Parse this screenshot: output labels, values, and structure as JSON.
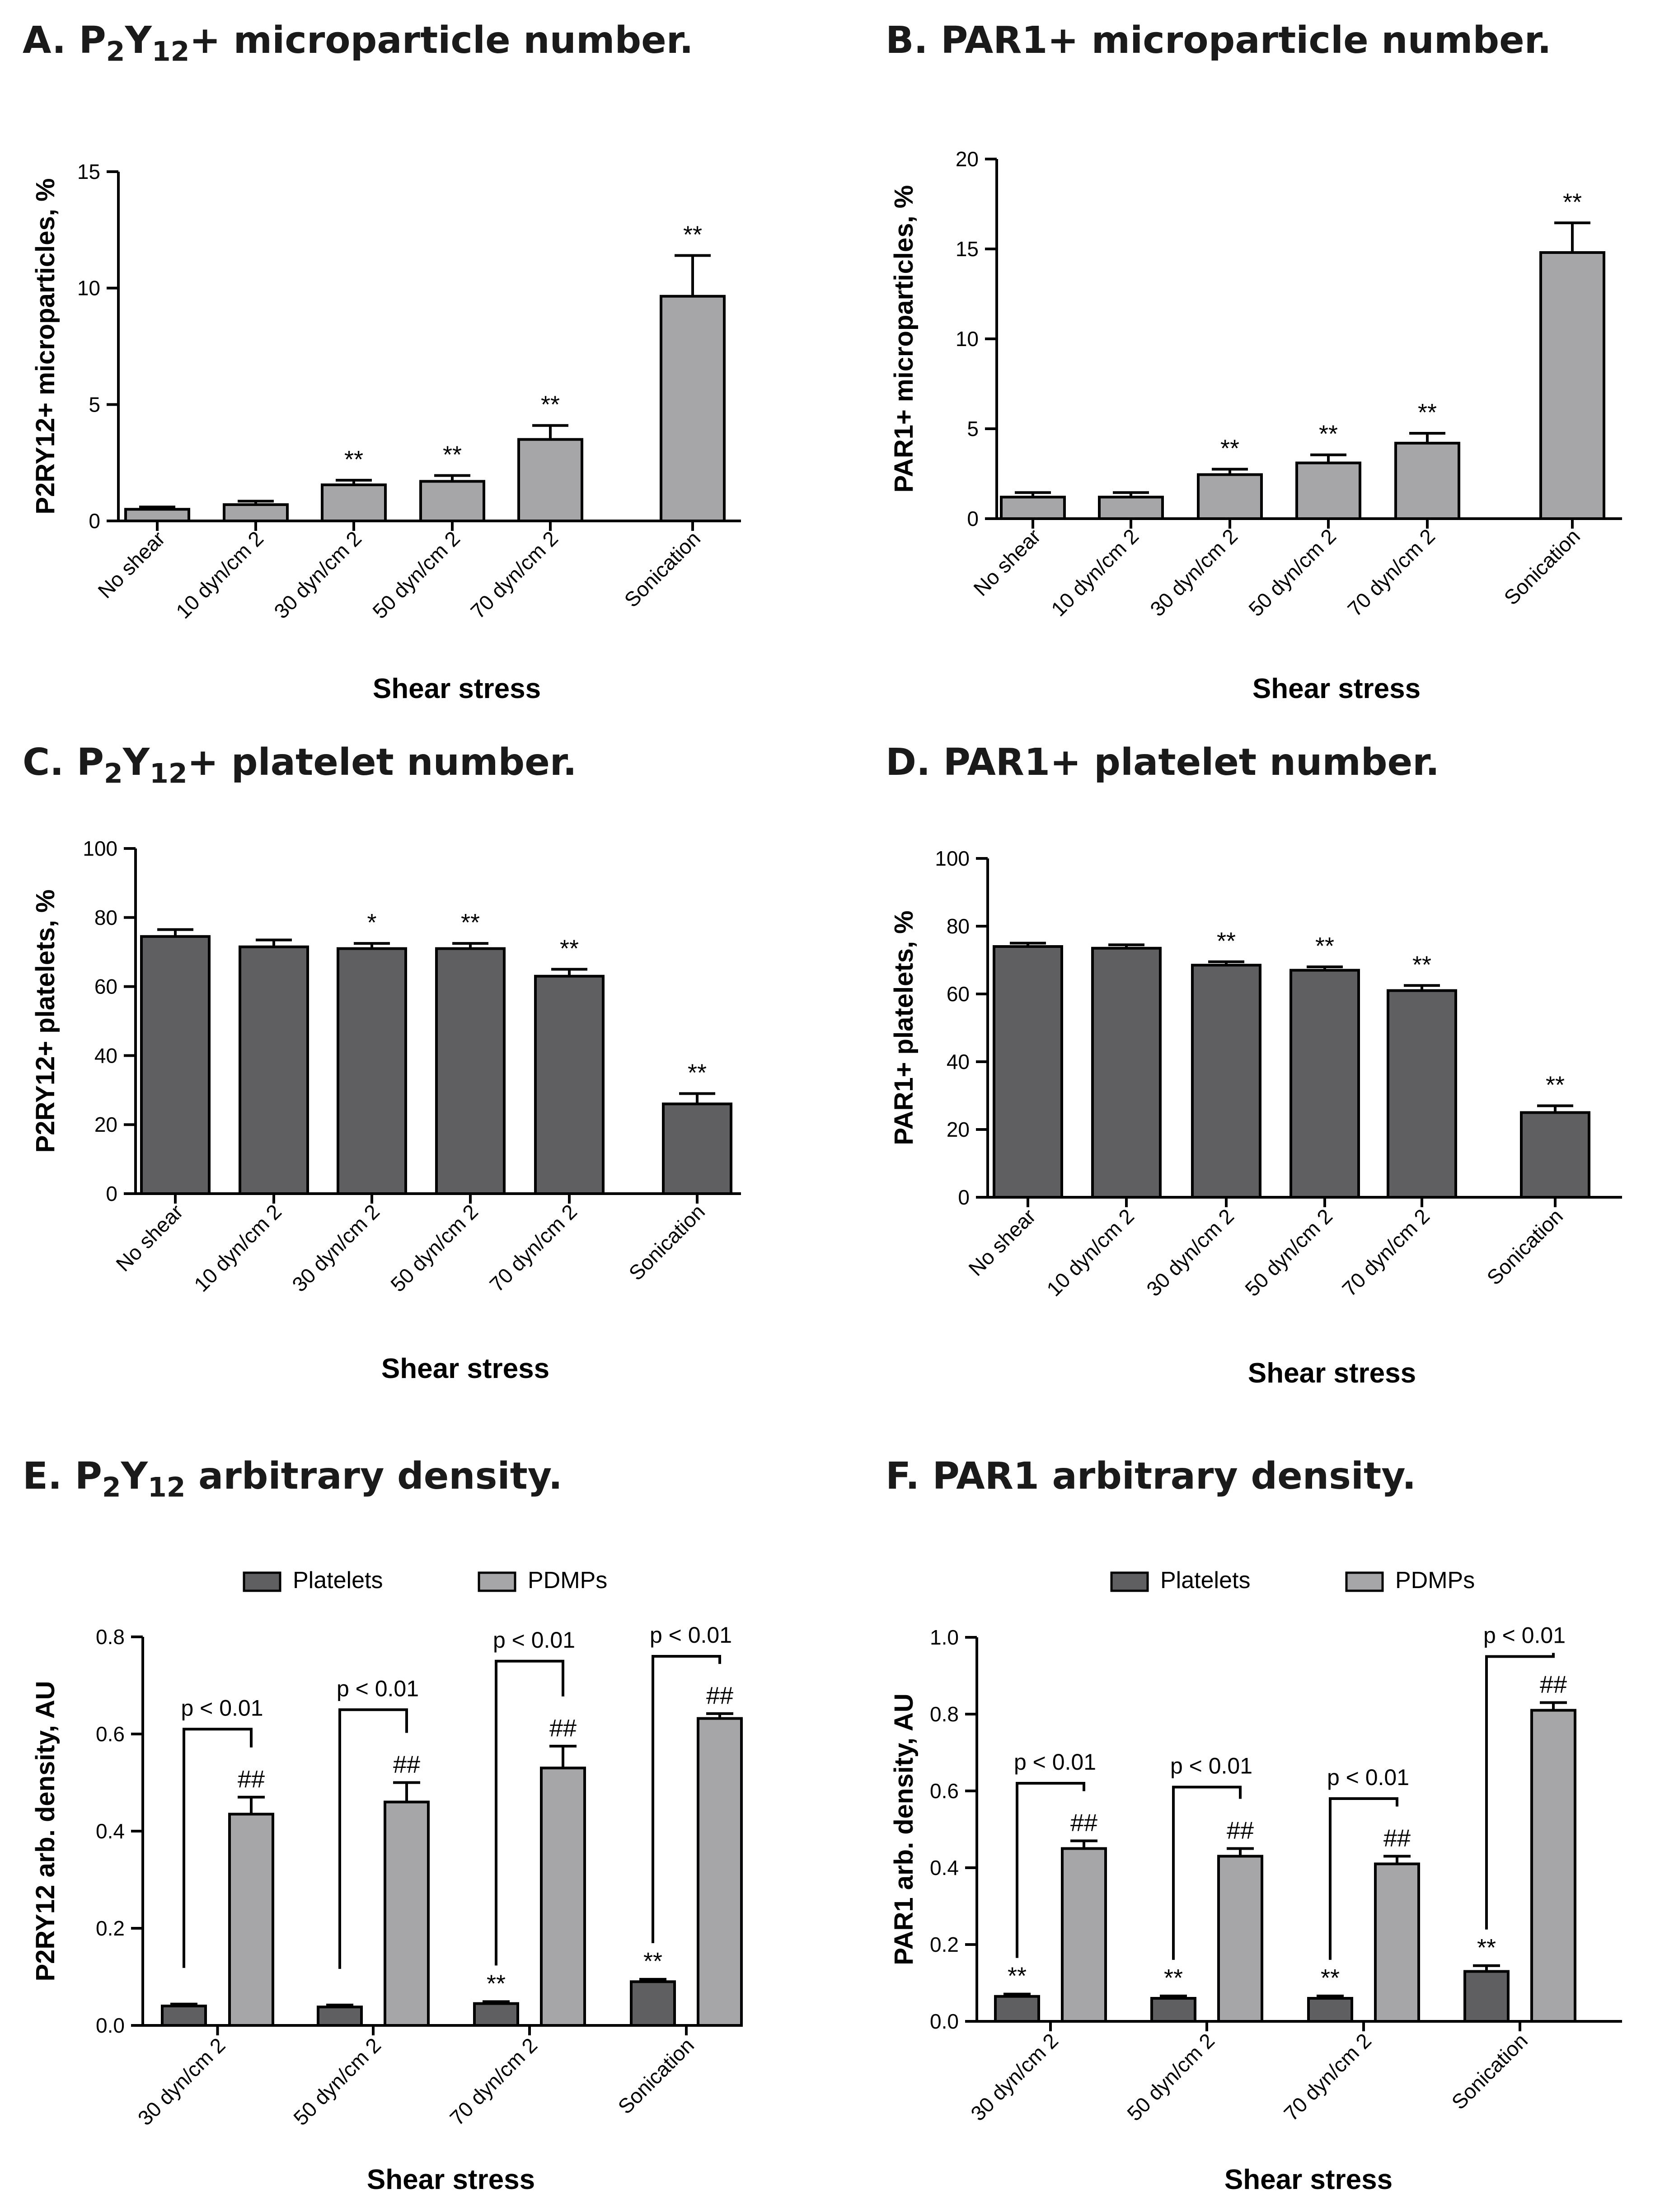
{
  "chart_data": [
    {
      "id": "A",
      "type": "bar",
      "title": {
        "prefix": "A. P",
        "s1": "2",
        "mid": "Y",
        "s2": "12",
        "suffix": "+ microparticle number."
      },
      "ylabel": "P2RY12+ microparticles, %",
      "xlabel": "Shear stress",
      "categories": [
        "No shear",
        "10 dyn/cm 2",
        "30 dyn/cm 2",
        "50 dyn/cm 2",
        "70 dyn/cm 2",
        "Sonication"
      ],
      "ylim": [
        0,
        15
      ],
      "yticks": [
        0,
        5,
        10,
        15
      ],
      "values": [
        0.5,
        0.7,
        1.55,
        1.7,
        3.5,
        9.65
      ],
      "errors": [
        0.1,
        0.15,
        0.2,
        0.25,
        0.6,
        1.75
      ],
      "sig": [
        "",
        "",
        "**",
        "**",
        "**",
        "**"
      ],
      "bar_color": "#a6a6a8"
    },
    {
      "id": "B",
      "type": "bar",
      "title": {
        "prefix": "B. PAR1+ microparticle number."
      },
      "ylabel": "PAR1+ microparticles, %",
      "xlabel": "Shear stress",
      "categories": [
        "No shear",
        "10 dyn/cm 2",
        "30 dyn/cm 2",
        "50 dyn/cm 2",
        "70 dyn/cm 2",
        "Sonication"
      ],
      "ylim": [
        0,
        20
      ],
      "yticks": [
        0,
        5,
        10,
        15,
        20
      ],
      "values": [
        1.2,
        1.2,
        2.45,
        3.1,
        4.2,
        14.8
      ],
      "errors": [
        0.25,
        0.25,
        0.3,
        0.45,
        0.55,
        1.65
      ],
      "sig": [
        "",
        "",
        "**",
        "**",
        "**",
        "**"
      ],
      "bar_color": "#a6a6a8"
    },
    {
      "id": "C",
      "type": "bar",
      "title": {
        "prefix": "C. P",
        "s1": "2",
        "mid": "Y",
        "s2": "12",
        "suffix": "+ platelet number."
      },
      "ylabel": "P2RY12+ platelets, %",
      "xlabel": "Shear stress",
      "categories": [
        "No shear",
        "10 dyn/cm 2",
        "30 dyn/cm 2",
        "50 dyn/cm 2",
        "70 dyn/cm 2",
        "Sonication"
      ],
      "ylim": [
        0,
        100
      ],
      "yticks": [
        0,
        20,
        40,
        60,
        80,
        100
      ],
      "values": [
        74.5,
        71.5,
        71,
        71,
        63,
        26
      ],
      "errors": [
        2,
        2,
        1.5,
        1.5,
        2,
        3
      ],
      "sig": [
        "",
        "",
        "*",
        "**",
        "**",
        "**"
      ],
      "bar_color": "#5f5f61"
    },
    {
      "id": "D",
      "type": "bar",
      "title": {
        "prefix": "D. PAR1+ platelet number."
      },
      "ylabel": "PAR1+ platelets, %",
      "xlabel": "Shear stress",
      "categories": [
        "No shear",
        "10 dyn/cm 2",
        "30 dyn/cm 2",
        "50 dyn/cm 2",
        "70 dyn/cm 2",
        "Sonication"
      ],
      "ylim": [
        0,
        100
      ],
      "yticks": [
        0,
        20,
        40,
        60,
        80,
        100
      ],
      "values": [
        74,
        73.5,
        68.5,
        67,
        61,
        25
      ],
      "errors": [
        1,
        1,
        1,
        1,
        1.5,
        2
      ],
      "sig": [
        "",
        "",
        "**",
        "**",
        "**",
        "**"
      ],
      "bar_color": "#5f5f61"
    },
    {
      "id": "E",
      "type": "bar",
      "title": {
        "prefix": "E. P",
        "s1": "2",
        "mid": "Y",
        "s2": "12",
        "suffix": " arbitrary density."
      },
      "ylabel": "P2RY12 arb. density, AU",
      "xlabel": "Shear stress",
      "categories": [
        "30 dyn/cm 2",
        "50 dyn/cm 2",
        "70 dyn/cm 2",
        "Sonication"
      ],
      "ylim": [
        0,
        0.8
      ],
      "yticks": [
        0.0,
        0.2,
        0.4,
        0.6,
        0.8
      ],
      "ytick_labels": [
        "0.0",
        "0.2",
        "0.4",
        "0.6",
        "0.8"
      ],
      "legend": [
        "Platelets",
        "PDMPs"
      ],
      "legend_position": "top",
      "series": [
        {
          "name": "Platelets",
          "values": [
            0.04,
            0.038,
            0.045,
            0.09
          ],
          "errors": [
            0.004,
            0.004,
            0.004,
            0.005
          ],
          "sig": [
            "",
            "",
            "**",
            "**"
          ],
          "color": "#5f5f61"
        },
        {
          "name": "PDMPs",
          "values": [
            0.435,
            0.46,
            0.53,
            0.632
          ],
          "errors": [
            0.035,
            0.04,
            0.045,
            0.01
          ],
          "sig": [
            "##",
            "##",
            "##",
            "##"
          ],
          "color": "#a6a6a8"
        }
      ],
      "annotation": "p < 0.01",
      "bracket_tops": [
        0.61,
        0.65,
        0.75,
        0.76
      ]
    },
    {
      "id": "F",
      "type": "bar",
      "title": {
        "prefix": "F. PAR1 arbitrary density."
      },
      "ylabel": "PAR1 arb. density, AU",
      "xlabel": "Shear stress",
      "categories": [
        "30 dyn/cm 2",
        "50 dyn/cm 2",
        "70 dyn/cm 2",
        "Sonication"
      ],
      "ylim": [
        0,
        1.0
      ],
      "yticks": [
        0.0,
        0.2,
        0.4,
        0.6,
        0.8,
        1.0
      ],
      "ytick_labels": [
        "0.0",
        "0.2",
        "0.4",
        "0.6",
        "0.8",
        "1.0"
      ],
      "legend": [
        "Platelets",
        "PDMPs"
      ],
      "legend_position": "top",
      "series": [
        {
          "name": "Platelets",
          "values": [
            0.065,
            0.06,
            0.06,
            0.13
          ],
          "errors": [
            0.006,
            0.006,
            0.006,
            0.015
          ],
          "sig": [
            "**",
            "**",
            "**",
            "**"
          ],
          "color": "#5f5f61"
        },
        {
          "name": "PDMPs",
          "values": [
            0.45,
            0.43,
            0.41,
            0.81
          ],
          "errors": [
            0.02,
            0.02,
            0.02,
            0.02
          ],
          "sig": [
            "##",
            "##",
            "##",
            "##"
          ],
          "color": "#a6a6a8"
        }
      ],
      "annotation": "p < 0.01",
      "bracket_tops": [
        0.62,
        0.61,
        0.58,
        0.95
      ]
    }
  ]
}
